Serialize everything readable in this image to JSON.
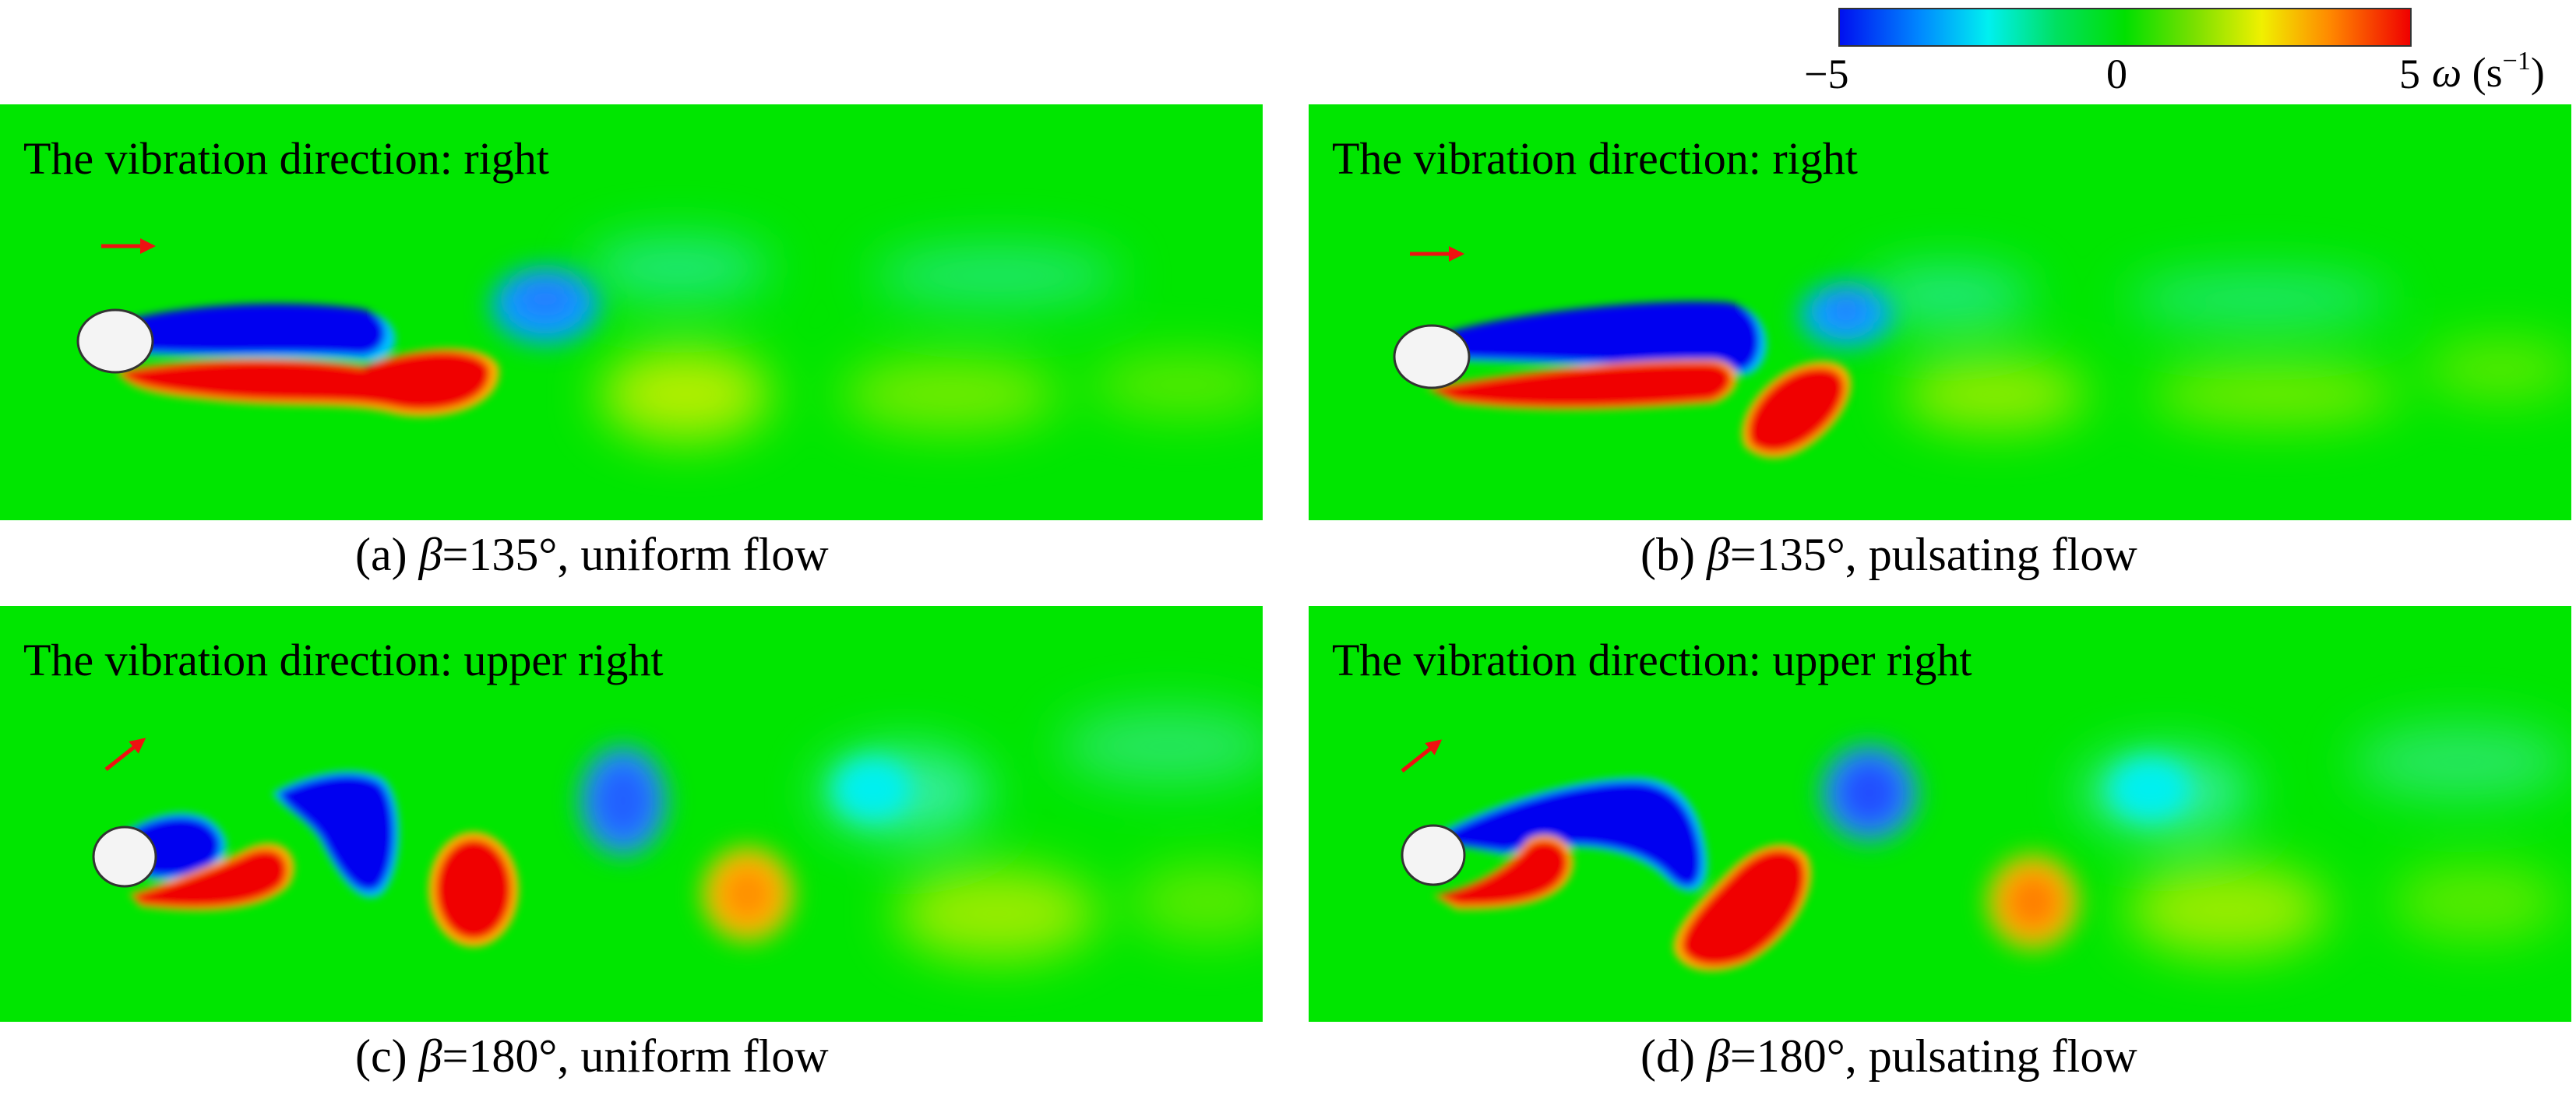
{
  "colorbar": {
    "tick_min": "−5",
    "tick_mid": "0",
    "tick_max": "5",
    "symbol": "ω",
    "unit": "(s",
    "unit_exp": "−1",
    "unit_close": ")",
    "colors": [
      "#0010f0",
      "#0088ff",
      "#00f0f0",
      "#00e000",
      "#f0f000",
      "#ff8800",
      "#f00000"
    ]
  },
  "panels": [
    {
      "direction_text": "The vibration direction: right",
      "caption_prefix": "(a) ",
      "caption_greek": "β",
      "caption_suffix": "=135°, uniform flow"
    },
    {
      "direction_text": "The vibration direction: right",
      "caption_prefix": "(b) ",
      "caption_greek": "β",
      "caption_suffix": "=135°, pulsating flow"
    },
    {
      "direction_text": "The vibration direction: upper right",
      "caption_prefix": "(c) ",
      "caption_greek": "β",
      "caption_suffix": "=180°, uniform flow"
    },
    {
      "direction_text": "The vibration direction: upper right",
      "caption_prefix": "(d) ",
      "caption_greek": "β",
      "caption_suffix": "=180°, pulsating flow"
    }
  ]
}
